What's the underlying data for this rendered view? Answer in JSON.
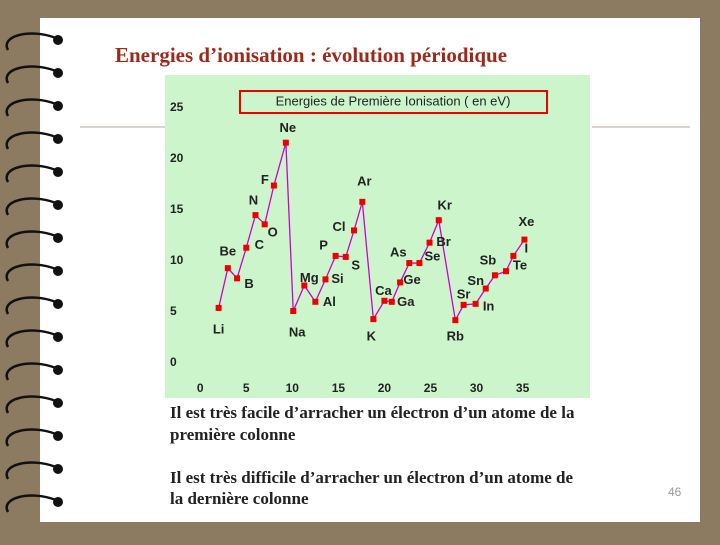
{
  "slide": {
    "title": "Energies d’ionisation : évolution périodique",
    "notes": [
      "Il est très facile d’arracher un électron d’un atome de la",
      "première colonne",
      "Il est très difficile d’arracher un électron d’un atome de",
      "la dernière colonne"
    ],
    "page_number": "46"
  },
  "chart_data": {
    "type": "line",
    "title": "Energies de Première Ionisation ( en eV)",
    "color": "#cc00cc",
    "marker_color": "#ee0000",
    "point_labels": [
      "Li",
      "Be",
      "B",
      "C",
      "N",
      "O",
      "F",
      "Ne",
      "Na",
      "Mg",
      "Al",
      "Si",
      "P",
      "S",
      "Cl",
      "Ar",
      "K",
      "Ca",
      "Ga",
      "Ge",
      "As",
      "Se",
      "Br",
      "Kr",
      "Rb",
      "Sr",
      "In",
      "Sn",
      "Sb",
      "Te",
      "I",
      "Xe"
    ],
    "x": [
      2,
      3,
      4,
      5,
      6,
      7,
      8,
      9.3,
      10.1,
      11.3,
      12.5,
      13.6,
      14.7,
      15.8,
      16.7,
      17.6,
      18.8,
      20,
      20.8,
      21.7,
      22.7,
      23.8,
      24.9,
      25.9,
      27.7,
      28.6,
      29.9,
      31,
      32,
      33.2,
      34,
      35.2
    ],
    "values": [
      5.4,
      9.3,
      8.3,
      11.3,
      14.5,
      13.6,
      17.4,
      21.6,
      5.1,
      7.6,
      6.0,
      8.2,
      10.5,
      10.4,
      13.0,
      15.8,
      4.3,
      6.1,
      6.0,
      7.9,
      9.8,
      9.8,
      11.8,
      14.0,
      4.2,
      5.7,
      5.8,
      7.3,
      8.6,
      9.0,
      10.5,
      12.1
    ],
    "xlim": [
      -1,
      37
    ],
    "ylim": [
      0,
      25
    ],
    "xticks": [
      0,
      5,
      10,
      15,
      20,
      25,
      30,
      35
    ],
    "yticks": [
      0,
      5,
      10,
      15,
      20,
      25
    ]
  }
}
